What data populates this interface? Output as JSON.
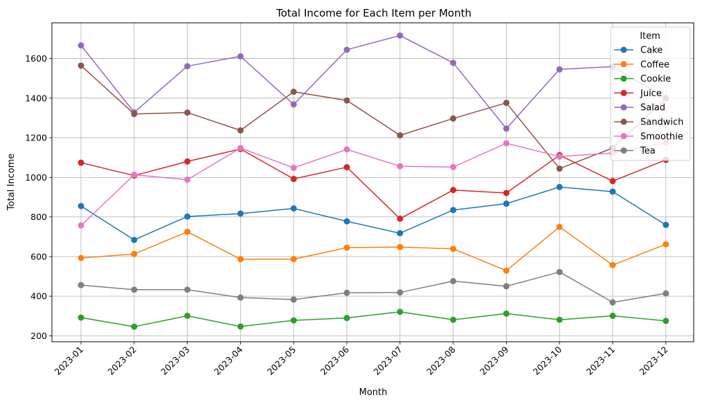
{
  "chart_data": {
    "type": "line",
    "title": "Total Income for Each Item per Month",
    "xlabel": "Month",
    "ylabel": "Total Income",
    "categories": [
      "2023-01",
      "2023-02",
      "2023-03",
      "2023-04",
      "2023-05",
      "2023-06",
      "2023-07",
      "2023-08",
      "2023-09",
      "2023-10",
      "2023-11",
      "2023-12"
    ],
    "yticks": [
      200,
      400,
      600,
      800,
      1000,
      1200,
      1400,
      1600
    ],
    "ylim": [
      170,
      1780
    ],
    "grid": true,
    "legend": {
      "title": "Item",
      "placement": "top-right"
    },
    "series": [
      {
        "name": "Cake",
        "color": "#1f77b4",
        "values": [
          855,
          684,
          802,
          817,
          843,
          778,
          718,
          835,
          867,
          951,
          928,
          760
        ]
      },
      {
        "name": "Coffee",
        "color": "#ff7f0e",
        "values": [
          593,
          613,
          725,
          587,
          587,
          645,
          648,
          639,
          529,
          750,
          557,
          662
        ]
      },
      {
        "name": "Cookie",
        "color": "#2ca02c",
        "values": [
          292,
          246,
          301,
          247,
          278,
          290,
          321,
          281,
          312,
          281,
          301,
          275
        ]
      },
      {
        "name": "Juice",
        "color": "#d62728",
        "values": [
          1074,
          1009,
          1080,
          1143,
          992,
          1051,
          791,
          936,
          921,
          1112,
          981,
          1088
        ]
      },
      {
        "name": "Salad",
        "color": "#9467bd",
        "values": [
          1666,
          1328,
          1561,
          1611,
          1368,
          1644,
          1716,
          1578,
          1246,
          1545,
          1559,
          1400
        ]
      },
      {
        "name": "Sandwich",
        "color": "#8c564b",
        "values": [
          1564,
          1320,
          1327,
          1237,
          1432,
          1388,
          1212,
          1297,
          1376,
          1044,
          1148,
          1398
        ]
      },
      {
        "name": "Smoothie",
        "color": "#e377c2",
        "values": [
          757,
          1013,
          988,
          1148,
          1048,
          1141,
          1056,
          1052,
          1172,
          1105,
          1123,
          1175
        ]
      },
      {
        "name": "Tea",
        "color": "#7f7f7f",
        "values": [
          456,
          433,
          433,
          393,
          383,
          417,
          419,
          476,
          450,
          522,
          369,
          414
        ]
      }
    ]
  }
}
